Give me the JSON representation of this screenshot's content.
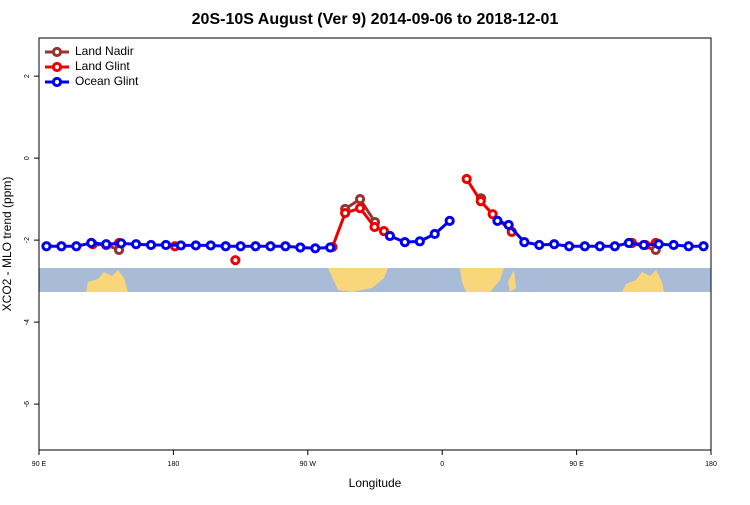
{
  "chart_data": {
    "type": "line",
    "title": "20S-10S August (Ver 9)   2014-09-06 to 2018-12-01",
    "xlabel": "Longitude",
    "ylabel": "XCO2 - MLO trend (ppm)",
    "xlim": [
      90,
      540
    ],
    "ylim": [
      -7.12,
      2.93
    ],
    "xticks": [
      {
        "value": 90,
        "label": "90 E"
      },
      {
        "value": 180,
        "label": "180"
      },
      {
        "value": 270,
        "label": "90 W"
      },
      {
        "value": 360,
        "label": "0"
      },
      {
        "value": 450,
        "label": "90 E"
      },
      {
        "value": 540,
        "label": "180"
      }
    ],
    "yticks": [
      -6,
      -4,
      -2,
      0,
      2
    ],
    "legend": "top-left",
    "series": [
      {
        "name": "Land Nadir",
        "color": "#993333",
        "x": [
          125,
          135,
          143.6,
          null,
          295,
          305,
          315,
          null,
          386,
          null,
          487,
          503
        ],
        "values": [
          -2.07,
          -2.12,
          -2.24,
          null,
          -1.24,
          -1.0,
          -1.56,
          null,
          -0.98,
          null,
          -2.07,
          -2.24
        ]
      },
      {
        "name": "Land Glint",
        "color": "#ee0000",
        "x": [
          126,
          135,
          143.6,
          null,
          181,
          null,
          221.5,
          null,
          286.5,
          295,
          305,
          314.7,
          321,
          null,
          376.4,
          385.8,
          393.8,
          406.6,
          null,
          487,
          496,
          503
        ],
        "values": [
          -2.1,
          -2.12,
          -2.07,
          null,
          -2.15,
          null,
          -2.49,
          null,
          -2.17,
          -1.34,
          -1.22,
          -1.68,
          -1.78,
          null,
          -0.51,
          -1.05,
          -1.37,
          -1.8,
          null,
          -2.07,
          -2.12,
          -2.07
        ]
      },
      {
        "name": "Ocean Glint",
        "color": "#0000ee",
        "x": [
          95,
          105,
          115,
          125,
          135,
          145,
          155,
          165,
          175,
          185,
          195,
          205,
          215,
          225,
          235,
          245,
          255,
          265,
          275,
          285,
          null,
          325,
          335,
          345,
          355,
          365,
          null,
          397,
          404.5,
          415,
          425,
          435,
          445,
          455.5,
          465.6,
          475.6,
          485,
          495,
          505,
          515,
          525,
          535
        ],
        "values": [
          -2.15,
          -2.15,
          -2.15,
          -2.07,
          -2.1,
          -2.08,
          -2.1,
          -2.12,
          -2.12,
          -2.13,
          -2.13,
          -2.13,
          -2.15,
          -2.15,
          -2.15,
          -2.15,
          -2.15,
          -2.18,
          -2.2,
          -2.18,
          null,
          -1.9,
          -2.05,
          -2.03,
          -1.85,
          -1.53,
          null,
          -1.53,
          -1.63,
          -2.05,
          -2.12,
          -2.1,
          -2.15,
          -2.15,
          -2.15,
          -2.15,
          -2.07,
          -2.12,
          -2.1,
          -2.12,
          -2.15,
          -2.15
        ]
      }
    ]
  }
}
